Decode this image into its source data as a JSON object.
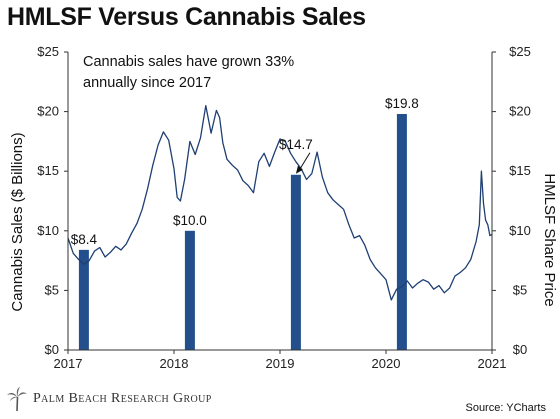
{
  "header": {
    "title": "HMLSF Versus Cannabis Sales"
  },
  "footer": {
    "brand": "Palm Beach Research Group",
    "source": "Source: YCharts"
  },
  "chart_data": {
    "type": "bar+line",
    "title": "HMLSF Versus Cannabis Sales",
    "annotation": "Cannabis sales have grown 33% annually since 2017",
    "annotation_lines": [
      "Cannabis sales have grown 33%",
      "annually since 2017"
    ],
    "ylabel_left": "Cannabis Sales ($ Billions)",
    "ylabel_right": "HMLSF Share Price",
    "xlim": [
      2017,
      2021
    ],
    "ylim_left": [
      0,
      25
    ],
    "ylim_right": [
      0,
      25
    ],
    "x_ticks": [
      "2017",
      "2018",
      "2019",
      "2020",
      "2021"
    ],
    "left_ticks": [
      "$0",
      "$5",
      "$10",
      "$15",
      "$20",
      "$25"
    ],
    "right_ticks": [
      "$0",
      "$5",
      "$10",
      "$15",
      "$20",
      "$25"
    ],
    "bar_color": "#23508c",
    "line_color": "#1f3f73",
    "bars": [
      {
        "x": 2017.15,
        "value": 8.4,
        "label": "$8.4"
      },
      {
        "x": 2018.15,
        "value": 10.0,
        "label": "$10.0"
      },
      {
        "x": 2019.15,
        "value": 14.7,
        "label": "$14.7"
      },
      {
        "x": 2020.15,
        "value": 19.8,
        "label": "$19.8"
      }
    ],
    "line_series": {
      "name": "HMLSF",
      "x": [
        2017.0,
        2017.05,
        2017.1,
        2017.15,
        2017.2,
        2017.25,
        2017.3,
        2017.35,
        2017.4,
        2017.45,
        2017.5,
        2017.55,
        2017.6,
        2017.65,
        2017.7,
        2017.75,
        2017.8,
        2017.85,
        2017.9,
        2017.95,
        2018.0,
        2018.03,
        2018.06,
        2018.1,
        2018.15,
        2018.2,
        2018.25,
        2018.3,
        2018.35,
        2018.4,
        2018.43,
        2018.46,
        2018.5,
        2018.55,
        2018.6,
        2018.65,
        2018.7,
        2018.75,
        2018.8,
        2018.85,
        2018.9,
        2018.95,
        2019.0,
        2019.05,
        2019.1,
        2019.15,
        2019.2,
        2019.25,
        2019.3,
        2019.35,
        2019.4,
        2019.45,
        2019.5,
        2019.55,
        2019.6,
        2019.65,
        2019.7,
        2019.75,
        2019.8,
        2019.85,
        2019.9,
        2019.95,
        2020.0,
        2020.05,
        2020.1,
        2020.15,
        2020.2,
        2020.25,
        2020.3,
        2020.35,
        2020.4,
        2020.45,
        2020.5,
        2020.55,
        2020.6,
        2020.65,
        2020.7,
        2020.75,
        2020.8,
        2020.85,
        2020.88,
        2020.9,
        2020.92,
        2020.94,
        2020.96,
        2020.98,
        2021.0
      ],
      "y": [
        9.4,
        8.1,
        7.6,
        7.2,
        7.5,
        8.3,
        8.6,
        7.8,
        8.2,
        8.7,
        8.4,
        8.9,
        9.8,
        10.6,
        11.8,
        13.5,
        15.5,
        17.2,
        18.3,
        17.6,
        15.2,
        12.8,
        12.5,
        14.3,
        17.5,
        16.4,
        17.8,
        20.5,
        18.2,
        20.1,
        19.5,
        17.4,
        16.0,
        15.5,
        15.1,
        14.2,
        13.8,
        13.2,
        15.8,
        16.5,
        15.4,
        16.6,
        17.7,
        17.5,
        16.5,
        15.8,
        15.2,
        14.3,
        14.8,
        16.6,
        14.5,
        13.2,
        12.6,
        12.2,
        11.8,
        10.5,
        9.4,
        9.6,
        8.8,
        7.6,
        6.9,
        6.4,
        5.9,
        4.2,
        5.1,
        5.3,
        5.8,
        5.2,
        5.6,
        5.9,
        5.7,
        5.1,
        5.4,
        4.8,
        5.2,
        6.2,
        6.5,
        6.9,
        7.6,
        9.1,
        10.5,
        15.0,
        12.3,
        10.9,
        10.5,
        9.6,
        9.7
      ]
    }
  }
}
